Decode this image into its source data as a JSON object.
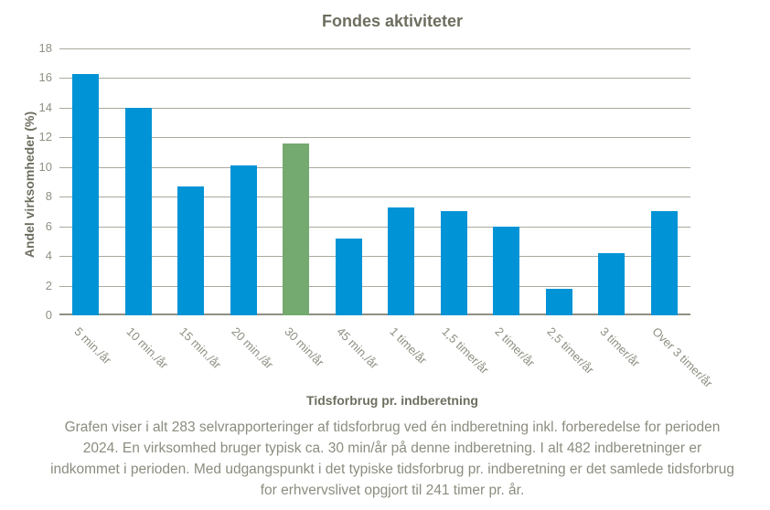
{
  "title": "Fondes aktiviteter",
  "chart_data": {
    "type": "bar",
    "title": "Fondes aktiviteter",
    "categories": [
      "5 min./år",
      "10 min./år",
      "15 min./år",
      "20 min./år",
      "30 min/år",
      "45 min./år",
      "1 time/år",
      "1,5 timer/år",
      "2 timer/år",
      "2,5 timer/år",
      "3 timer/år",
      "Over 3 timer/år"
    ],
    "values": [
      16.3,
      14.0,
      8.7,
      10.1,
      11.6,
      5.2,
      7.3,
      7.0,
      6.0,
      1.8,
      4.2,
      7.0
    ],
    "highlight_index": 4,
    "xlabel": "Tidsforbrug pr. indberetning",
    "ylabel": "Andel virksomheder (%)",
    "ylim": [
      0,
      18
    ],
    "ytick_step": 2,
    "grid": true,
    "legend_position": "none",
    "colors": {
      "bar": "#0093d5",
      "highlight": "#74a96f",
      "gridline": "#a9a99e",
      "axis": "#8f8f84",
      "tick_text": "#8f8f84",
      "title_text": "#6e6e60",
      "caption_text": "#8c8c80"
    }
  },
  "caption": {
    "lines": [
      "Grafen viser i alt 283 selvrapporteringer af tidsforbrug ved én indberetning inkl. forberedelse for perioden",
      "2024. En virksomhed bruger typisk ca. 30 min/år på denne indberetning. I alt 482 indberetninger er",
      "indkommet i perioden. Med udgangspunkt i det typiske tidsforbrug pr. indberetning er det samlede tidsforbrug",
      "for erhvervslivet opgjort til 241 timer pr. år."
    ]
  }
}
